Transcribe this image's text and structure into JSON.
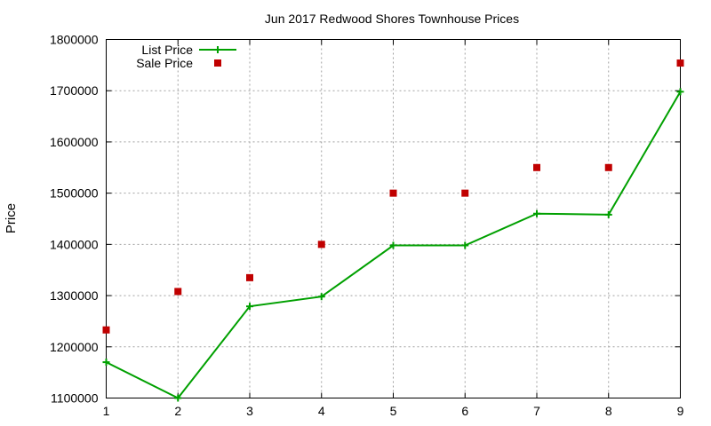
{
  "chart_data": {
    "type": "line",
    "title": "Jun 2017 Redwood Shores Townhouse Prices",
    "xlabel": "",
    "ylabel": "Price",
    "x": [
      1,
      2,
      3,
      4,
      5,
      6,
      7,
      8,
      9
    ],
    "x_ticks": [
      "1",
      "2",
      "3",
      "4",
      "5",
      "6",
      "7",
      "8",
      "9"
    ],
    "xlim": [
      1,
      9
    ],
    "y_ticks": [
      "1100000",
      "1200000",
      "1300000",
      "1400000",
      "1500000",
      "1600000",
      "1700000",
      "1800000"
    ],
    "ylim": [
      1100000,
      1800000
    ],
    "grid": true,
    "legend_position": "top-left",
    "series": [
      {
        "name": "List Price",
        "style": "line-with-plus-markers",
        "color": "#00a000",
        "values": [
          1170000,
          1100000,
          1279000,
          1298000,
          1398000,
          1398000,
          1460000,
          1458000,
          1698000
        ]
      },
      {
        "name": "Sale Price",
        "style": "square-markers",
        "color": "#c00000",
        "values": [
          1233000,
          1308000,
          1335000,
          1400000,
          1500000,
          1500000,
          1550000,
          1550000,
          1754000
        ]
      }
    ]
  }
}
